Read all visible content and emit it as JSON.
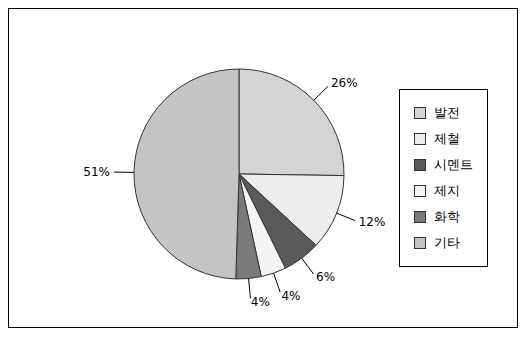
{
  "chart_data": {
    "type": "pie",
    "categories": [
      "발전",
      "제철",
      "시멘트",
      "제지",
      "화학",
      "기타"
    ],
    "values": [
      26,
      12,
      6,
      4,
      4,
      51
    ],
    "value_labels": [
      "26%",
      "12%",
      "6%",
      "4%",
      "4%",
      "51%"
    ],
    "data_labels": true,
    "colors": [
      "#d4d4d4",
      "#ededed",
      "#5a5a5a",
      "#f5f5f5",
      "#7a7a7a",
      "#c4c4c4"
    ],
    "legend": "right"
  }
}
